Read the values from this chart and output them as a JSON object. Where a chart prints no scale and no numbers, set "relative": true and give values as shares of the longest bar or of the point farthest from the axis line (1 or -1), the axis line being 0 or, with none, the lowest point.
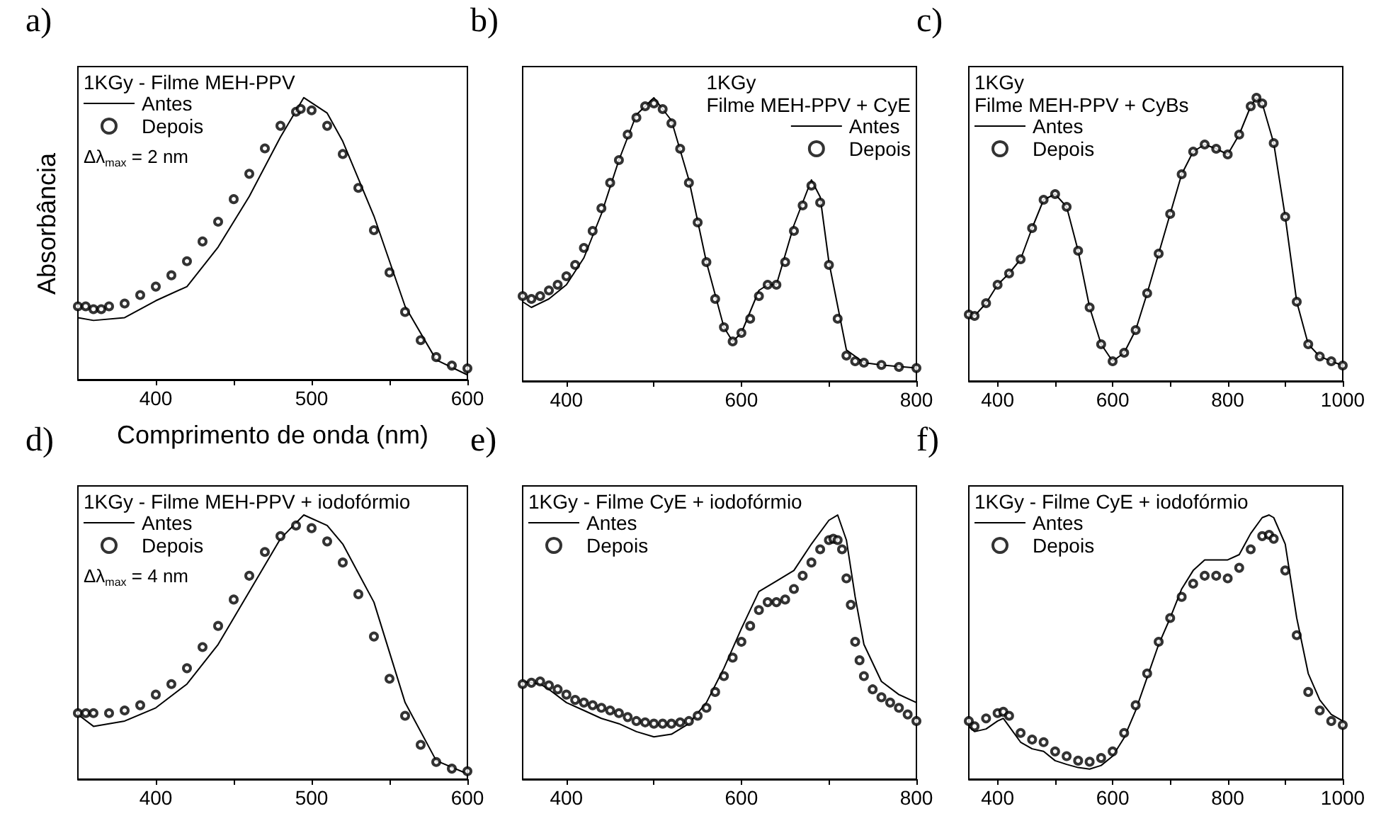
{
  "chart_data": [
    {
      "type": "line",
      "title": "a)",
      "legend_title": "1KGy - Filme MEH-PPV",
      "xlabel": "Comprimento de onda (nm)",
      "ylabel": "Absorbância",
      "annotations": [
        "Δλ$_{max}$ = 2 nm"
      ],
      "relative": true,
      "xlim": [
        350,
        600
      ],
      "xticks": [
        400,
        {
          "value": 450,
          "label": null
        },
        500,
        {
          "value": 550,
          "label": null
        },
        600
      ],
      "tick_labels": "x",
      "legend": "top left",
      "series": [
        {
          "name": "Antes",
          "type": "line",
          "color": "#000000",
          "marker": "none",
          "x": [
            350,
            360,
            380,
            400,
            420,
            440,
            460,
            480,
            495,
            510,
            520,
            540,
            560,
            580,
            600
          ],
          "values": [
            0.22,
            0.21,
            0.22,
            0.28,
            0.33,
            0.47,
            0.65,
            0.86,
            1.0,
            0.945,
            0.845,
            0.58,
            0.26,
            0.07,
            0.017
          ]
        },
        {
          "name": "Depois",
          "type": "scatter",
          "color": "#000000",
          "marker": "circle",
          "x": [
            350,
            355,
            360,
            365,
            370,
            380,
            390,
            400,
            410,
            420,
            430,
            440,
            450,
            460,
            470,
            480,
            490,
            493,
            500,
            510,
            520,
            530,
            540,
            550,
            560,
            570,
            580,
            590,
            600
          ],
          "values": [
            0.26,
            0.26,
            0.25,
            0.25,
            0.26,
            0.27,
            0.3,
            0.33,
            0.37,
            0.42,
            0.49,
            0.56,
            0.64,
            0.73,
            0.82,
            0.9,
            0.95,
            0.96,
            0.955,
            0.9,
            0.8,
            0.68,
            0.53,
            0.38,
            0.24,
            0.14,
            0.08,
            0.05,
            0.04
          ]
        }
      ]
    },
    {
      "type": "line",
      "title": "b)",
      "legend_title": "1KGy\nFilme MEH-PPV + CyE",
      "relative": true,
      "xlim": [
        350,
        800
      ],
      "xticks": [
        400,
        {
          "value": 500,
          "label": null
        },
        600,
        {
          "value": 700,
          "label": null
        },
        800
      ],
      "tick_labels": "x",
      "legend": "top right",
      "series": [
        {
          "name": "Antes",
          "type": "line",
          "color": "#000000",
          "marker": "none",
          "x": [
            350,
            360,
            380,
            400,
            420,
            440,
            460,
            480,
            500,
            520,
            540,
            560,
            580,
            590,
            600,
            620,
            630,
            640,
            660,
            680,
            690,
            700,
            720,
            740,
            760,
            800
          ],
          "values": [
            0.28,
            0.26,
            0.29,
            0.34,
            0.435,
            0.59,
            0.78,
            0.94,
            1.0,
            0.92,
            0.71,
            0.42,
            0.19,
            0.14,
            0.17,
            0.32,
            0.34,
            0.34,
            0.55,
            0.71,
            0.65,
            0.42,
            0.11,
            0.065,
            0.057,
            0.046
          ]
        },
        {
          "name": "Depois",
          "type": "scatter",
          "color": "#000000",
          "marker": "circle",
          "x": [
            350,
            360,
            370,
            380,
            390,
            400,
            410,
            420,
            430,
            440,
            450,
            460,
            470,
            480,
            490,
            500,
            510,
            520,
            530,
            540,
            550,
            560,
            570,
            580,
            590,
            600,
            610,
            620,
            630,
            640,
            650,
            660,
            670,
            680,
            690,
            700,
            710,
            720,
            730,
            740,
            760,
            780,
            800
          ],
          "values": [
            0.3,
            0.29,
            0.3,
            0.32,
            0.34,
            0.37,
            0.41,
            0.47,
            0.53,
            0.61,
            0.7,
            0.78,
            0.87,
            0.93,
            0.97,
            0.98,
            0.96,
            0.91,
            0.82,
            0.7,
            0.56,
            0.42,
            0.29,
            0.19,
            0.14,
            0.17,
            0.22,
            0.3,
            0.34,
            0.34,
            0.42,
            0.53,
            0.62,
            0.69,
            0.63,
            0.41,
            0.22,
            0.09,
            0.07,
            0.065,
            0.057,
            0.05,
            0.046
          ]
        }
      ]
    },
    {
      "type": "line",
      "title": "c)",
      "legend_title": "1KGy\nFilme MEH-PPV + CyBs",
      "relative": true,
      "xlim": [
        350,
        1000
      ],
      "xticks": [
        400,
        {
          "value": 500,
          "label": null
        },
        600,
        {
          "value": 700,
          "label": null
        },
        800,
        {
          "value": 900,
          "label": null
        },
        1000
      ],
      "tick_labels": "x",
      "legend": "top left",
      "series": [
        {
          "name": "Antes",
          "type": "line",
          "color": "#000000",
          "marker": "none",
          "x": [
            350,
            360,
            380,
            400,
            420,
            440,
            460,
            480,
            500,
            520,
            540,
            560,
            580,
            600,
            620,
            640,
            660,
            680,
            700,
            720,
            740,
            760,
            780,
            800,
            820,
            840,
            850,
            860,
            880,
            900,
            920,
            940,
            960,
            980,
            1000
          ],
          "values": [
            0.235,
            0.23,
            0.275,
            0.34,
            0.38,
            0.43,
            0.54,
            0.64,
            0.66,
            0.615,
            0.46,
            0.26,
            0.13,
            0.07,
            0.1,
            0.18,
            0.31,
            0.45,
            0.59,
            0.73,
            0.81,
            0.835,
            0.82,
            0.8,
            0.87,
            0.97,
            1.0,
            0.98,
            0.84,
            0.58,
            0.28,
            0.13,
            0.087,
            0.07,
            0.055
          ]
        },
        {
          "name": "Depois",
          "type": "scatter",
          "color": "#000000",
          "marker": "circle",
          "x": [
            350,
            360,
            380,
            400,
            420,
            440,
            460,
            480,
            500,
            520,
            540,
            560,
            580,
            600,
            620,
            640,
            660,
            680,
            700,
            720,
            740,
            760,
            780,
            800,
            820,
            840,
            850,
            860,
            880,
            900,
            920,
            940,
            960,
            980,
            1000
          ],
          "values": [
            0.235,
            0.23,
            0.275,
            0.34,
            0.38,
            0.43,
            0.54,
            0.64,
            0.66,
            0.615,
            0.46,
            0.26,
            0.13,
            0.07,
            0.1,
            0.18,
            0.31,
            0.45,
            0.59,
            0.73,
            0.81,
            0.835,
            0.82,
            0.8,
            0.87,
            0.97,
            1.0,
            0.98,
            0.84,
            0.58,
            0.28,
            0.13,
            0.087,
            0.07,
            0.055
          ]
        }
      ]
    },
    {
      "type": "line",
      "title": "d)",
      "legend_title": "1KGy - Filme MEH-PPV + iodofórmio",
      "annotations": [
        "Δλ$_{max}$ = 4 nm"
      ],
      "relative": true,
      "xlim": [
        350,
        600
      ],
      "xticks": [
        400,
        {
          "value": 450,
          "label": null
        },
        500,
        {
          "value": 550,
          "label": null
        },
        600
      ],
      "tick_labels": "x",
      "legend": "top left",
      "series": [
        {
          "name": "Antes",
          "type": "line",
          "color": "#000000",
          "marker": "none",
          "x": [
            350,
            360,
            380,
            400,
            420,
            440,
            460,
            480,
            495,
            510,
            520,
            540,
            560,
            580,
            600
          ],
          "values": [
            0.245,
            0.2,
            0.22,
            0.27,
            0.36,
            0.51,
            0.71,
            0.91,
            1.0,
            0.96,
            0.89,
            0.67,
            0.29,
            0.07,
            0.02
          ]
        },
        {
          "name": "Depois",
          "type": "scatter",
          "color": "#000000",
          "marker": "circle",
          "x": [
            350,
            355,
            360,
            370,
            380,
            390,
            400,
            410,
            420,
            430,
            440,
            450,
            460,
            470,
            480,
            490,
            500,
            510,
            520,
            530,
            540,
            550,
            560,
            570,
            580,
            590,
            600
          ],
          "values": [
            0.25,
            0.25,
            0.25,
            0.25,
            0.26,
            0.28,
            0.32,
            0.36,
            0.42,
            0.5,
            0.58,
            0.68,
            0.77,
            0.86,
            0.92,
            0.96,
            0.95,
            0.9,
            0.82,
            0.7,
            0.54,
            0.38,
            0.24,
            0.13,
            0.065,
            0.04,
            0.03
          ]
        }
      ]
    },
    {
      "type": "line",
      "title": "e)",
      "legend_title": "1KGy - Filme CyE + iodofórmio",
      "relative": true,
      "xlim": [
        350,
        800
      ],
      "xticks": [
        400,
        {
          "value": 500,
          "label": null
        },
        600,
        {
          "value": 700,
          "label": null
        },
        800
      ],
      "tick_labels": "x",
      "legend": "top left",
      "series": [
        {
          "name": "Antes",
          "type": "line",
          "color": "#000000",
          "marker": "none",
          "x": [
            350,
            370,
            380,
            400,
            420,
            440,
            460,
            480,
            500,
            520,
            540,
            560,
            580,
            600,
            620,
            640,
            660,
            680,
            700,
            710,
            720,
            730,
            740,
            760,
            780,
            800
          ],
          "values": [
            0.37,
            0.36,
            0.34,
            0.29,
            0.26,
            0.23,
            0.21,
            0.18,
            0.16,
            0.17,
            0.21,
            0.29,
            0.42,
            0.57,
            0.71,
            0.75,
            0.79,
            0.89,
            0.98,
            1.0,
            0.905,
            0.69,
            0.51,
            0.37,
            0.32,
            0.29
          ]
        },
        {
          "name": "Depois",
          "type": "scatter",
          "color": "#000000",
          "marker": "circle",
          "x": [
            350,
            360,
            370,
            380,
            390,
            400,
            410,
            420,
            430,
            440,
            450,
            460,
            470,
            480,
            490,
            500,
            510,
            520,
            530,
            540,
            550,
            560,
            570,
            580,
            590,
            600,
            610,
            620,
            630,
            640,
            650,
            660,
            670,
            680,
            690,
            700,
            705,
            710,
            715,
            720,
            725,
            730,
            735,
            740,
            750,
            760,
            770,
            780,
            790,
            800
          ],
          "values": [
            0.36,
            0.365,
            0.37,
            0.355,
            0.34,
            0.32,
            0.3,
            0.29,
            0.28,
            0.27,
            0.26,
            0.25,
            0.235,
            0.22,
            0.215,
            0.21,
            0.21,
            0.21,
            0.215,
            0.22,
            0.24,
            0.27,
            0.33,
            0.39,
            0.46,
            0.52,
            0.58,
            0.64,
            0.67,
            0.67,
            0.68,
            0.72,
            0.77,
            0.82,
            0.87,
            0.905,
            0.91,
            0.905,
            0.87,
            0.76,
            0.66,
            0.52,
            0.45,
            0.39,
            0.34,
            0.31,
            0.29,
            0.27,
            0.245,
            0.22
          ]
        }
      ]
    },
    {
      "type": "line",
      "title": "f)",
      "legend_title": "1KGy - Filme CyE + iodofórmio",
      "relative": true,
      "xlim": [
        350,
        1000
      ],
      "xticks": [
        400,
        {
          "value": 500,
          "label": null
        },
        600,
        {
          "value": 700,
          "label": null
        },
        800,
        {
          "value": 900,
          "label": null
        },
        1000
      ],
      "tick_labels": "x",
      "legend": "top left",
      "series": [
        {
          "name": "Antes",
          "type": "line",
          "color": "#000000",
          "marker": "none",
          "x": [
            350,
            360,
            380,
            400,
            410,
            420,
            440,
            460,
            480,
            500,
            520,
            540,
            560,
            580,
            600,
            620,
            640,
            660,
            680,
            700,
            720,
            740,
            760,
            780,
            800,
            820,
            840,
            860,
            872,
            880,
            900,
            920,
            940,
            960,
            980,
            1000
          ],
          "values": [
            0.2,
            0.18,
            0.19,
            0.22,
            0.23,
            0.2,
            0.14,
            0.115,
            0.105,
            0.07,
            0.056,
            0.044,
            0.038,
            0.052,
            0.087,
            0.157,
            0.26,
            0.385,
            0.51,
            0.61,
            0.72,
            0.79,
            0.83,
            0.83,
            0.83,
            0.85,
            0.93,
            0.99,
            1.0,
            0.99,
            0.89,
            0.61,
            0.4,
            0.3,
            0.245,
            0.22
          ]
        },
        {
          "name": "Depois",
          "type": "scatter",
          "color": "#000000",
          "marker": "circle",
          "x": [
            350,
            360,
            380,
            400,
            410,
            420,
            440,
            460,
            480,
            500,
            520,
            540,
            560,
            580,
            600,
            620,
            640,
            660,
            680,
            700,
            720,
            740,
            760,
            780,
            800,
            820,
            840,
            860,
            872,
            880,
            900,
            920,
            940,
            960,
            980,
            1000
          ],
          "values": [
            0.22,
            0.2,
            0.23,
            0.25,
            0.255,
            0.24,
            0.175,
            0.15,
            0.14,
            0.105,
            0.087,
            0.07,
            0.066,
            0.08,
            0.105,
            0.175,
            0.28,
            0.4,
            0.52,
            0.61,
            0.69,
            0.74,
            0.77,
            0.77,
            0.76,
            0.8,
            0.87,
            0.92,
            0.925,
            0.91,
            0.79,
            0.545,
            0.33,
            0.26,
            0.22,
            0.205
          ]
        }
      ]
    }
  ]
}
